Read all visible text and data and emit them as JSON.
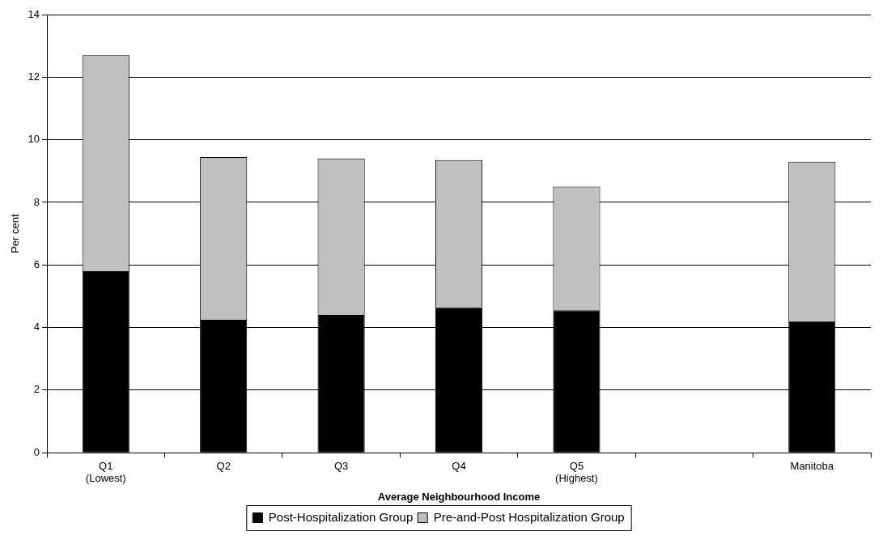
{
  "chart_data": {
    "type": "bar",
    "stacked": true,
    "xlabel": "Average Neighbourhood Income",
    "ylabel": "Per cent",
    "categories": [
      "Q1 (Lowest)",
      "Q2",
      "Q3",
      "Q4",
      "Q5 (Highest)",
      null,
      "Manitoba"
    ],
    "series": [
      {
        "name": "Post-Hospitalization Group",
        "color": "#000000",
        "values": [
          5.8,
          4.25,
          4.4,
          4.65,
          4.55,
          null,
          4.2
        ]
      },
      {
        "name": "Pre-and-Post Hospitalization Group",
        "color": "#c0c0c0",
        "values": [
          6.9,
          5.2,
          5.0,
          4.7,
          3.95,
          null,
          5.1
        ]
      }
    ],
    "ylim": [
      0,
      14
    ],
    "yticks": [
      0,
      2,
      4,
      6,
      8,
      10,
      12,
      14
    ],
    "grid": "y",
    "legend": "bottom"
  }
}
